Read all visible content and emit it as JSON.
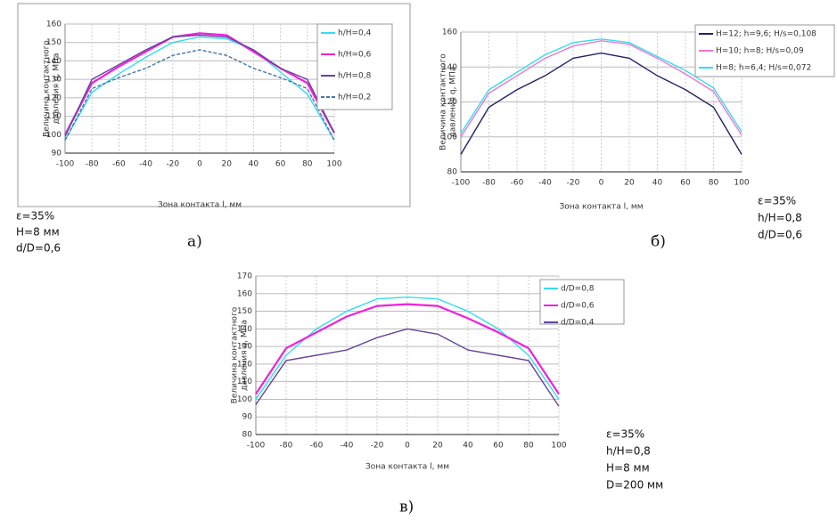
{
  "chart_data": [
    {
      "type": "line",
      "panel_label": "а)",
      "xlabel": "Зона контакта  l, мм",
      "ylabel": [
        "Величина контактного",
        "давления  q, МПа"
      ],
      "x": [
        -100,
        -80,
        -60,
        -40,
        -20,
        0,
        20,
        40,
        60,
        80,
        100
      ],
      "xlim": [
        -100,
        100
      ],
      "xticks": [
        -100,
        -80,
        -60,
        -40,
        -20,
        0,
        20,
        40,
        60,
        80,
        100
      ],
      "ylim": [
        90,
        160
      ],
      "yticks": [
        90,
        100,
        110,
        120,
        130,
        140,
        150,
        160
      ],
      "grid": true,
      "series": [
        {
          "name": "h/H=0,4",
          "color": "#33ddee",
          "values": [
            97,
            123,
            133,
            142,
            150,
            153,
            152,
            146,
            134,
            122,
            97
          ]
        },
        {
          "name": "h/H=0,6",
          "color": "#ee22dd",
          "values": [
            100,
            128,
            137,
            145,
            153,
            155,
            154,
            145,
            136,
            128,
            101
          ]
        },
        {
          "name": "h/H=0,8",
          "color": "#664499",
          "values": [
            99,
            130,
            138,
            146,
            153,
            154,
            153,
            146,
            136,
            130,
            101
          ]
        },
        {
          "name": "h/H=0,2",
          "color": "#4477aa",
          "line_style": "dashed",
          "values": [
            97,
            125,
            131,
            136,
            143,
            146,
            143,
            136,
            131,
            125,
            97
          ]
        }
      ],
      "annotations": [
        "ε=35%",
        "H=8 мм",
        "d/D=0,6"
      ]
    },
    {
      "type": "line",
      "panel_label": "б)",
      "xlabel": "Зона контакта  l, мм",
      "ylabel": [
        "Величина контактного",
        "давления  q, МПа"
      ],
      "x": [
        -100,
        -80,
        -60,
        -40,
        -20,
        0,
        20,
        40,
        60,
        80,
        100
      ],
      "xlim": [
        -100,
        100
      ],
      "xticks": [
        -100,
        -80,
        -60,
        -40,
        -20,
        0,
        20,
        40,
        60,
        80,
        100
      ],
      "ylim": [
        80,
        160
      ],
      "yticks": [
        80,
        100,
        120,
        140,
        160
      ],
      "grid": true,
      "series": [
        {
          "name": "H=12; h=9,6; H/s=0,108",
          "color": "#222266",
          "values": [
            90,
            117,
            127,
            135,
            145,
            148,
            145,
            135,
            127,
            117,
            90
          ]
        },
        {
          "name": "H=10; h=8; H/s=0,09",
          "color": "#ee77cc",
          "values": [
            100,
            125,
            135,
            145,
            152,
            155,
            153,
            145,
            136,
            126,
            101
          ]
        },
        {
          "name": "H=8; h=6,4; H/s=0,072",
          "color": "#33ddee",
          "values": [
            102,
            127,
            137,
            147,
            154,
            156,
            154,
            146,
            138,
            128,
            103
          ]
        }
      ],
      "annotations": [
        "ε=35%",
        "h/H=0,8",
        "d/D=0,6"
      ]
    },
    {
      "type": "line",
      "panel_label": "в)",
      "xlabel": "Зона контакта  l, мм",
      "ylabel": [
        "Величина контактного",
        "давления  q, МПа"
      ],
      "x": [
        -100,
        -80,
        -60,
        -40,
        -20,
        0,
        20,
        40,
        60,
        80,
        100
      ],
      "xlim": [
        -100,
        100
      ],
      "xticks": [
        -100,
        -80,
        -60,
        -40,
        -20,
        0,
        20,
        40,
        60,
        80,
        100
      ],
      "ylim": [
        80,
        170
      ],
      "yticks": [
        80,
        90,
        100,
        110,
        120,
        130,
        140,
        150,
        160,
        170
      ],
      "grid": true,
      "series": [
        {
          "name": "d/D=0,8",
          "color": "#33ddee",
          "values": [
            100,
            125,
            140,
            150,
            157,
            158,
            157,
            150,
            140,
            125,
            100
          ]
        },
        {
          "name": "d/D=0,6",
          "color": "#ee22dd",
          "values": [
            103,
            129,
            138,
            147,
            153,
            154,
            153,
            146,
            138,
            129,
            103
          ]
        },
        {
          "name": "d/D=0,4",
          "color": "#664499",
          "values": [
            97,
            122,
            125,
            128,
            135,
            140,
            137,
            128,
            125,
            122,
            96
          ]
        }
      ],
      "annotations": [
        "ε=35%",
        "h/H=0,8",
        "H=8 мм",
        "D=200 мм"
      ]
    }
  ]
}
